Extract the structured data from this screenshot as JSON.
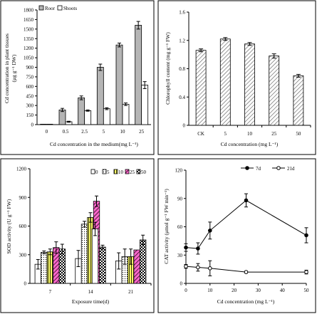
{
  "chart_data": [
    {
      "type": "bar",
      "categories": [
        "0",
        "0.5",
        "2.5",
        "5",
        "10",
        "25"
      ],
      "series": [
        {
          "name": "Roor",
          "values": [
            0,
            230,
            420,
            900,
            1250,
            1560
          ],
          "errors": [
            0,
            25,
            30,
            50,
            30,
            60
          ],
          "fill": "gray"
        },
        {
          "name": "Shoots",
          "values": [
            0,
            45,
            220,
            250,
            320,
            620
          ],
          "errors": [
            0,
            8,
            10,
            15,
            20,
            55
          ],
          "fill": "white"
        }
      ],
      "xlabel": "Cd concentration in the medium(mg L⁻¹)",
      "ylabel_lines": [
        "Cd concentration in plant tissues",
        "(μg g⁻¹ DW)"
      ],
      "ylim": [
        0,
        1800
      ],
      "yticks": [
        "0",
        "150",
        "300",
        "450",
        "600",
        "750",
        "900",
        "1050",
        "1200",
        "1350",
        "1500",
        "1650",
        "1800"
      ],
      "legend_position": "top-left",
      "grid": false
    },
    {
      "type": "bar",
      "categories": [
        "CK",
        "5",
        "10",
        "25",
        "50"
      ],
      "series": [
        {
          "name": "",
          "values": [
            1.06,
            1.22,
            1.15,
            0.98,
            0.7
          ],
          "errors": [
            0.02,
            0.02,
            0.02,
            0.03,
            0.02
          ],
          "fill": "hatch"
        }
      ],
      "xlabel": "Cd concentration (mg L⁻¹)",
      "ylabel": "Chlorophyll content (mg g⁻¹ FW)",
      "ylim": [
        0,
        1.6
      ],
      "yticks": [
        "0",
        "0.4",
        "0.8",
        "1.2",
        "1.6"
      ],
      "grid": false
    },
    {
      "type": "bar",
      "categories": [
        "7",
        "14",
        "21"
      ],
      "series": [
        {
          "name": "0",
          "values": [
            200,
            260,
            235
          ],
          "errors": [
            50,
            85,
            85
          ],
          "fill": "white"
        },
        {
          "name": "5",
          "values": [
            325,
            620,
            280
          ],
          "errors": [
            15,
            30,
            80
          ],
          "fill": "dots"
        },
        {
          "name": "10",
          "values": [
            330,
            690,
            280
          ],
          "errors": [
            30,
            50,
            80
          ],
          "fill": "yellow-stripe"
        },
        {
          "name": "25",
          "values": [
            375,
            860,
            350
          ],
          "errors": [
            60,
            55,
            0
          ],
          "fill": "pink-diag"
        },
        {
          "name": "50",
          "values": [
            360,
            380,
            455
          ],
          "errors": [
            50,
            20,
            50
          ],
          "fill": "checker"
        }
      ],
      "extra_bar": {
        "group": "14",
        "value": 570,
        "error": 70,
        "fill": "white",
        "note": "overlapping bar at 14d"
      },
      "xlabel": "Exposure time(d)",
      "ylabel": "SOD activity (U g⁻¹ FW)",
      "ylim": [
        0,
        1200
      ],
      "yticks": [
        "0",
        "300",
        "600",
        "900",
        "1200"
      ],
      "legend_position": "top-right",
      "grid": false
    },
    {
      "type": "line",
      "x": [
        0,
        5,
        10,
        25,
        50
      ],
      "series": [
        {
          "name": "7d",
          "values": [
            38,
            37,
            56,
            88,
            51
          ],
          "errors": [
            4,
            6,
            9,
            7,
            8
          ],
          "marker": "filled-circle"
        },
        {
          "name": "21d",
          "values": [
            18,
            17,
            16,
            12,
            12
          ],
          "errors": [
            2,
            4,
            8,
            1,
            2
          ],
          "marker": "open-circle"
        }
      ],
      "xlabel": "Cd concentration (mg L⁻¹)",
      "ylabel": "CAT activity (μmol g⁻¹ FW min⁻¹)",
      "xlim": [
        0,
        50
      ],
      "ylim": [
        0,
        120
      ],
      "xticks": [
        "0",
        "10",
        "20",
        "30",
        "40",
        "50"
      ],
      "yticks": [
        "0",
        "30",
        "60",
        "90",
        "120"
      ],
      "legend_position": "top",
      "grid": false
    }
  ]
}
